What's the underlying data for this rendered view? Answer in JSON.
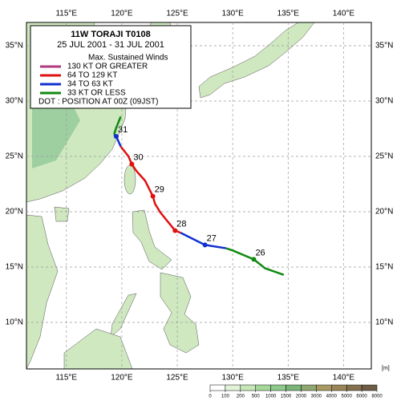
{
  "chart_data": {
    "type": "track",
    "title": "11W TORAJI T0108",
    "subtitle": "25 JUL 2001 - 31 JUL 2001",
    "legend_title": "Max. Sustained Winds",
    "note": "DOT : POSITION AT 00Z (09JST)",
    "xlim": [
      111.4,
      142.5
    ],
    "ylim": [
      5.8,
      37.1
    ],
    "xticks": [
      {
        "value": 115,
        "label": "115°E"
      },
      {
        "value": 120,
        "label": "120°E"
      },
      {
        "value": 125,
        "label": "125°E"
      },
      {
        "value": 130,
        "label": "130°E"
      },
      {
        "value": 135,
        "label": "135°E"
      },
      {
        "value": 140,
        "label": "140°E"
      }
    ],
    "yticks": [
      {
        "value": 10,
        "label": "10°N"
      },
      {
        "value": 15,
        "label": "15°N"
      },
      {
        "value": 20,
        "label": "20°N"
      },
      {
        "value": 25,
        "label": "25°N"
      },
      {
        "value": 30,
        "label": "30°N"
      },
      {
        "value": 35,
        "label": "35°N"
      }
    ],
    "grid": true,
    "legend": [
      {
        "name": "130 KT OR GREATER",
        "color": "#b03a80"
      },
      {
        "name": "64 TO 129 KT",
        "color": "#e01010"
      },
      {
        "name": "34 TO 63 KT",
        "color": "#1030d0"
      },
      {
        "name": "33 KT OR LESS",
        "color": "#108a10"
      }
    ],
    "series": [
      {
        "legend": 3,
        "x": [
          134.6,
          132.9,
          131.9,
          130.0,
          129.4
        ],
        "y": [
          14.3,
          14.9,
          15.7,
          16.5,
          16.7
        ]
      },
      {
        "legend": 2,
        "x": [
          129.4,
          127.5,
          125.3
        ],
        "y": [
          16.7,
          17.0,
          18.1
        ]
      },
      {
        "legend": 1,
        "x": [
          125.3,
          124.8,
          123.5,
          123.0,
          122.8,
          122.1,
          121.3,
          120.9,
          120.6,
          119.9
        ],
        "y": [
          18.1,
          18.3,
          19.9,
          20.7,
          21.4,
          22.8,
          23.7,
          24.3,
          25.0,
          25.9
        ]
      },
      {
        "legend": 2,
        "x": [
          119.9,
          119.5,
          119.3
        ],
        "y": [
          25.9,
          26.8,
          27.0
        ]
      },
      {
        "legend": 3,
        "x": [
          119.3,
          119.5,
          119.9
        ],
        "y": [
          27.0,
          27.6,
          28.6
        ]
      }
    ],
    "points": {
      "labels": [
        "26",
        "27",
        "28",
        "29",
        "30",
        "31"
      ],
      "x": [
        131.9,
        127.5,
        124.8,
        122.8,
        120.9,
        119.5
      ],
      "y": [
        15.7,
        17.0,
        18.3,
        21.4,
        24.3,
        26.8
      ],
      "colors": [
        "#108a10",
        "#1030d0",
        "#e01010",
        "#e01010",
        "#e01010",
        "#1030d0"
      ]
    },
    "colorbar": {
      "unit": "[m]",
      "ticks": [
        0,
        100,
        200,
        500,
        1000,
        1500,
        2000,
        3000,
        4000,
        5000,
        6000,
        8000
      ],
      "colors": [
        "#ffffff",
        "#e3f3d8",
        "#c7e7b6",
        "#a6d89a",
        "#8cc98a",
        "#7ab57a",
        "#8fa870",
        "#a89a62",
        "#9a8458",
        "#86704e",
        "#6e5c44"
      ]
    }
  }
}
